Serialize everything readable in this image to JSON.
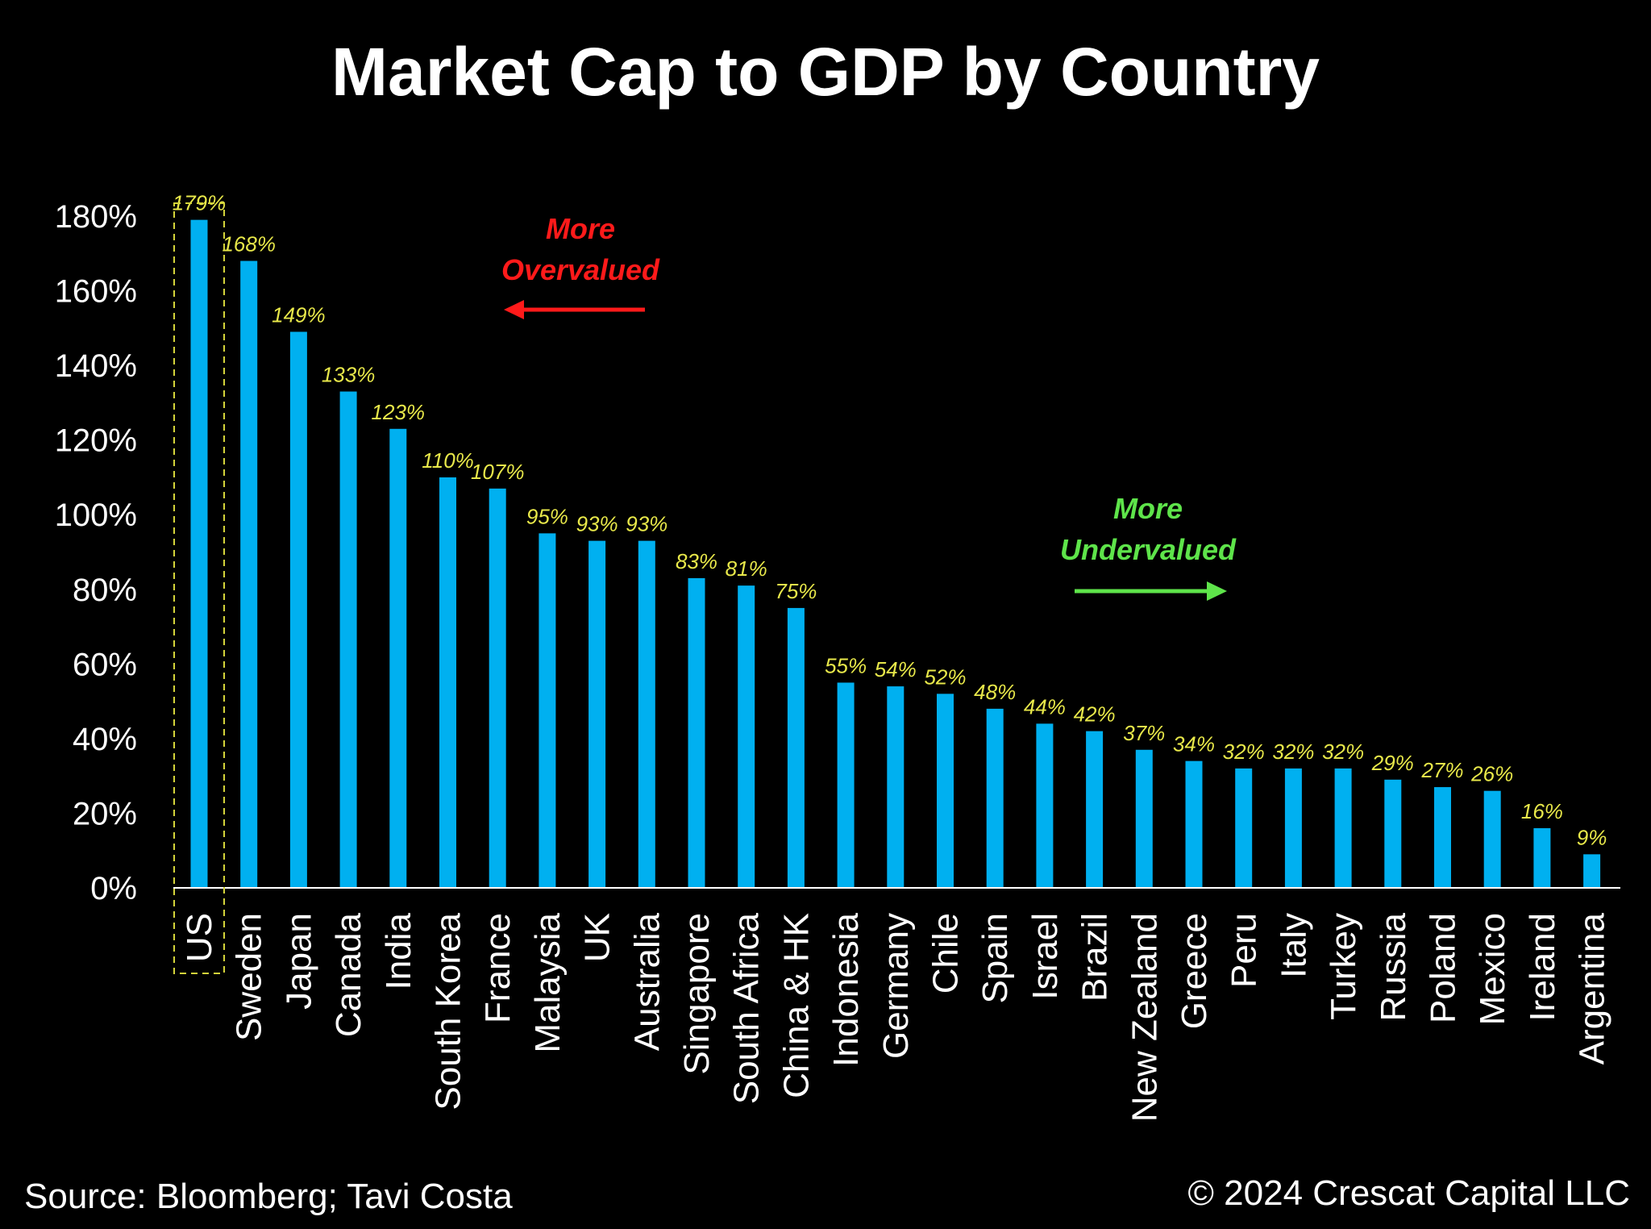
{
  "chart_data": {
    "type": "bar",
    "title": "Market Cap to GDP by Country",
    "categories": [
      "US",
      "Sweden",
      "Japan",
      "Canada",
      "India",
      "South Korea",
      "France",
      "Malaysia",
      "UK",
      "Australia",
      "Singapore",
      "South Africa",
      "China & HK",
      "Indonesia",
      "Germany",
      "Chile",
      "Spain",
      "Israel",
      "Brazil",
      "New Zealand",
      "Greece",
      "Peru",
      "Italy",
      "Turkey",
      "Russia",
      "Poland",
      "Mexico",
      "Ireland",
      "Argentina"
    ],
    "series": [
      {
        "values": [
          179,
          168,
          149,
          133,
          123,
          110,
          107,
          95,
          93,
          93,
          83,
          81,
          75,
          55,
          54,
          52,
          48,
          44,
          42,
          37,
          34,
          32,
          32,
          32,
          29,
          27,
          26,
          16,
          9
        ]
      }
    ],
    "data_labels": [
      "179%",
      "168%",
      "149%",
      "133%",
      "123%",
      "110%",
      "107%",
      "95%",
      "93%",
      "93%",
      "83%",
      "81%",
      "75%",
      "55%",
      "54%",
      "52%",
      "48%",
      "44%",
      "42%",
      "37%",
      "34%",
      "32%",
      "32%",
      "32%",
      "29%",
      "27%",
      "26%",
      "16%",
      "9%"
    ],
    "ylim": [
      0,
      180
    ],
    "yticks": [
      0,
      20,
      40,
      60,
      80,
      100,
      120,
      140,
      160,
      180
    ],
    "ytick_labels": [
      "0%",
      "20%",
      "40%",
      "60%",
      "80%",
      "100%",
      "120%",
      "140%",
      "160%",
      "180%"
    ],
    "xlabel": "",
    "ylabel": "",
    "grid": false,
    "highlighted_category": "US",
    "annotations": {
      "overvalued": {
        "lines": [
          "More",
          "Overvalued"
        ],
        "direction": "left"
      },
      "undervalued": {
        "lines": [
          "More",
          "Undervalued"
        ],
        "direction": "right"
      }
    }
  },
  "footer": {
    "source": "Source: Bloomberg; Tavi Costa",
    "copyright": "© 2024 Crescat Capital LLC"
  },
  "colors": {
    "background": "#000000",
    "bar": "#00b0f0",
    "text": "#ffffff",
    "data_label": "#e8e84a",
    "overvalued": "#ff1a1a",
    "undervalued": "#5ee44a",
    "highlight_box": "#d4d43a"
  }
}
